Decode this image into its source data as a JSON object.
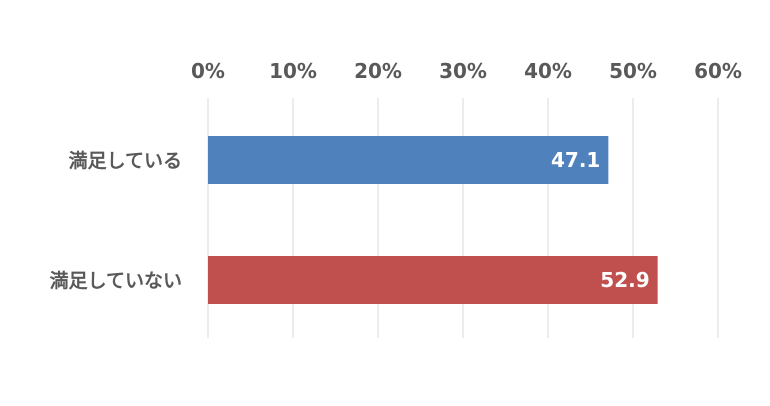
{
  "chart_data": {
    "type": "bar",
    "orientation": "horizontal",
    "categories": [
      "満足している",
      "満足していない"
    ],
    "values": [
      47.1,
      52.9
    ],
    "data_labels": [
      "47.1",
      "52.9"
    ],
    "colors": [
      "#4f81bd",
      "#c0504d"
    ],
    "xlim": [
      0,
      60
    ],
    "xticks": [
      0,
      10,
      20,
      30,
      40,
      50,
      60
    ],
    "xtick_labels": [
      "0%",
      "10%",
      "20%",
      "30%",
      "40%",
      "50%",
      "60%"
    ],
    "x_axis_position": "top",
    "grid": true
  }
}
